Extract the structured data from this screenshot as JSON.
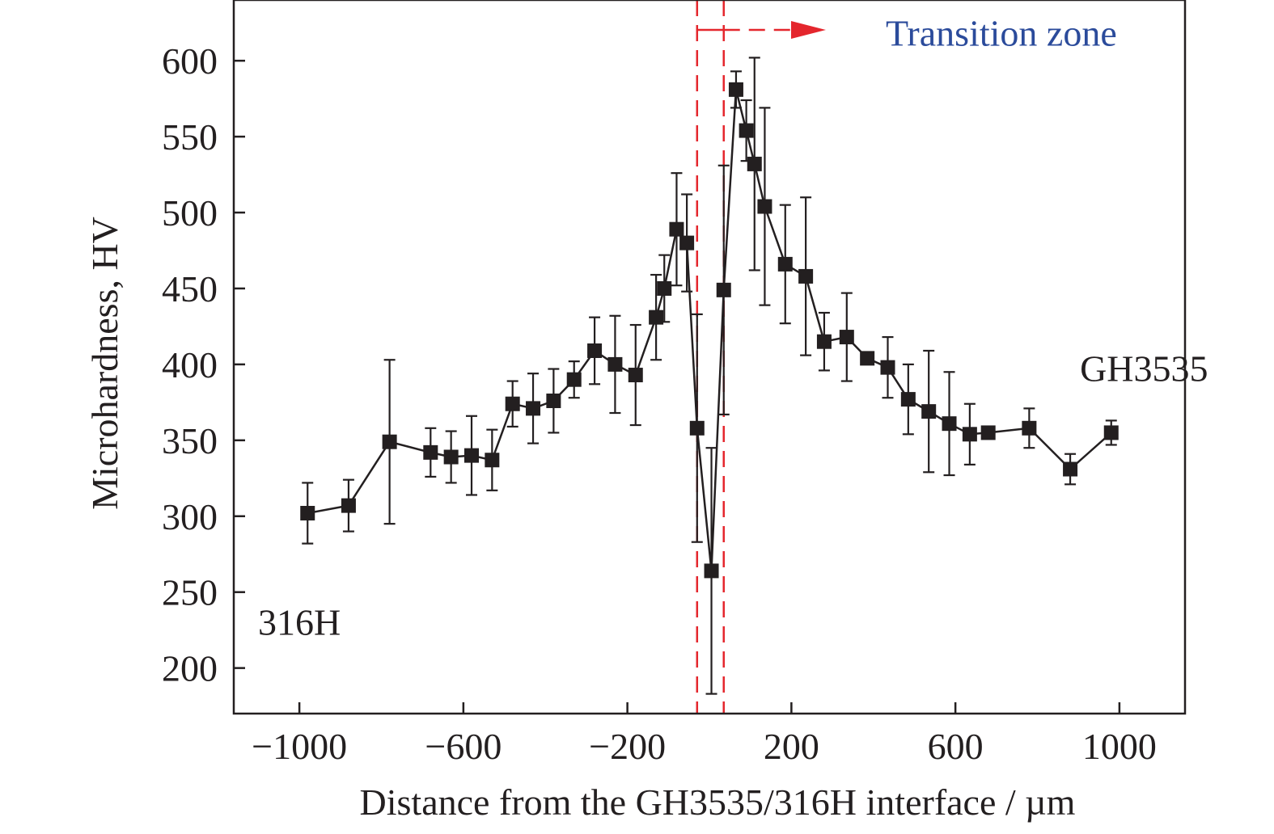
{
  "chart_data": {
    "type": "line",
    "xlabel": "Distance from the GH3535/316H interface / µm",
    "ylabel": "Microhardness, HV",
    "xlim": [
      -1160,
      1160
    ],
    "ylim": [
      170,
      640
    ],
    "x_ticks": [
      -1000,
      -600,
      -200,
      200,
      600,
      1000
    ],
    "x_tick_labels": [
      "−1000",
      "−600",
      "−200",
      "200",
      "600",
      "1000"
    ],
    "y_ticks": [
      200,
      250,
      300,
      350,
      400,
      450,
      500,
      550,
      600
    ],
    "y_tick_labels": [
      "200",
      "250",
      "300",
      "350",
      "400",
      "450",
      "500",
      "550",
      "600"
    ],
    "grid": false,
    "marker": "square",
    "series": [
      {
        "color": "#231f20",
        "points": [
          {
            "x": -980,
            "y": 302,
            "err": 20
          },
          {
            "x": -880,
            "y": 307,
            "err": 17
          },
          {
            "x": -780,
            "y": 349,
            "err": 54
          },
          {
            "x": -680,
            "y": 342,
            "err": 16
          },
          {
            "x": -630,
            "y": 339,
            "err": 17
          },
          {
            "x": -580,
            "y": 340,
            "err": 26
          },
          {
            "x": -530,
            "y": 337,
            "err": 20
          },
          {
            "x": -480,
            "y": 374,
            "err": 15
          },
          {
            "x": -430,
            "y": 371,
            "err": 23
          },
          {
            "x": -380,
            "y": 376,
            "err": 21
          },
          {
            "x": -330,
            "y": 390,
            "err": 12
          },
          {
            "x": -280,
            "y": 409,
            "err": 22
          },
          {
            "x": -230,
            "y": 400,
            "err": 32
          },
          {
            "x": -180,
            "y": 393,
            "err": 33
          },
          {
            "x": -130,
            "y": 431,
            "err": 28
          },
          {
            "x": -110,
            "y": 450,
            "err": 22
          },
          {
            "x": -80,
            "y": 489,
            "err": 37
          },
          {
            "x": -55,
            "y": 480,
            "err": 32
          },
          {
            "x": -30,
            "y": 358,
            "err": 75
          },
          {
            "x": 5,
            "y": 264,
            "err": 81
          },
          {
            "x": 35,
            "y": 449,
            "err": 82
          },
          {
            "x": 65,
            "y": 581,
            "err": 12
          },
          {
            "x": 90,
            "y": 554,
            "err": 20
          },
          {
            "x": 110,
            "y": 532,
            "err": 70
          },
          {
            "x": 135,
            "y": 504,
            "err": 65
          },
          {
            "x": 185,
            "y": 466,
            "err": 39
          },
          {
            "x": 235,
            "y": 458,
            "err": 52
          },
          {
            "x": 280,
            "y": 415,
            "err": 19
          },
          {
            "x": 335,
            "y": 418,
            "err": 29
          },
          {
            "x": 385,
            "y": 404,
            "err": 3
          },
          {
            "x": 435,
            "y": 398,
            "err": 20
          },
          {
            "x": 485,
            "y": 377,
            "err": 23
          },
          {
            "x": 535,
            "y": 369,
            "err": 40
          },
          {
            "x": 585,
            "y": 361,
            "err": 34
          },
          {
            "x": 635,
            "y": 354,
            "err": 20
          },
          {
            "x": 680,
            "y": 355,
            "err": 3
          },
          {
            "x": 780,
            "y": 358,
            "err": 13
          },
          {
            "x": 880,
            "y": 331,
            "err": 10
          },
          {
            "x": 980,
            "y": 355,
            "err": 8
          }
        ]
      }
    ],
    "annotations": [
      {
        "text": "316H",
        "x": -1000,
        "y": 222
      },
      {
        "text": "GH3535",
        "x": 1060,
        "y": 389
      },
      {
        "text": "Transition zone",
        "x": 430,
        "y": 610,
        "color": "#2b4b9b"
      }
    ],
    "transition_zone": {
      "x_start": -30,
      "x_end": 35,
      "color": "#e4262d"
    }
  }
}
